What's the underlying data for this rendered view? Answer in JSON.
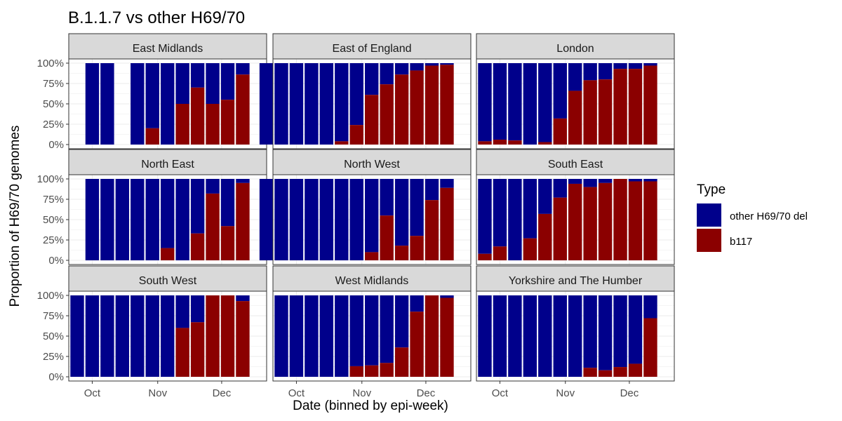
{
  "chart_data": {
    "type": "bar",
    "stacked": true,
    "title": "B.1.1.7 vs other H69/70",
    "xlabel": "Date (binned by epi-week)",
    "ylabel": "Proportion of H69/70 genomes",
    "ylim": [
      0,
      1
    ],
    "y_ticks": [
      "0%",
      "25%",
      "50%",
      "75%",
      "100%"
    ],
    "x_ticks": [
      "Oct",
      "Nov",
      "Dec"
    ],
    "weeks": 12,
    "legend": {
      "title": "Type",
      "position": "right",
      "items": [
        {
          "label": "other H69/70 del",
          "color": "#00008B"
        },
        {
          "label": "b117",
          "color": "#8B0000"
        }
      ]
    },
    "panels": [
      {
        "region": "East Midlands",
        "b117": [
          0,
          0,
          null,
          0,
          0.2,
          0,
          0.5,
          0.7,
          0.5,
          0.55,
          0.86
        ]
      },
      {
        "region": "East of England",
        "b117": [
          0,
          0,
          0,
          0,
          0,
          0.04,
          0.24,
          0.61,
          0.74,
          0.86,
          0.91,
          0.97,
          0.98
        ]
      },
      {
        "region": "London",
        "b117": [
          0.04,
          0.06,
          0.05,
          0,
          0.03,
          0.32,
          0.66,
          0.79,
          0.8,
          0.93,
          0.93,
          0.97
        ]
      },
      {
        "region": "North East",
        "b117": [
          0,
          0,
          0,
          0,
          0,
          0.15,
          0,
          0.33,
          0.82,
          0.42,
          0.95
        ]
      },
      {
        "region": "North West",
        "b117": [
          0,
          0,
          0,
          0,
          0,
          0,
          0,
          0.1,
          0.55,
          0.18,
          0.3,
          0.74,
          0.89
        ]
      },
      {
        "region": "South East",
        "b117": [
          0.08,
          0.17,
          0,
          0.27,
          0.57,
          0.77,
          0.94,
          0.9,
          0.95,
          1.0,
          0.97,
          0.97
        ]
      },
      {
        "region": "South West",
        "b117": [
          0,
          0,
          0,
          0,
          0,
          0,
          0,
          0.6,
          0.67,
          1.0,
          1.0,
          0.93
        ]
      },
      {
        "region": "West Midlands",
        "b117": [
          0,
          0,
          0,
          0,
          0,
          0.13,
          0.14,
          0.17,
          0.36,
          0.8,
          1.0,
          0.97
        ]
      },
      {
        "region": "Yorkshire and The Humber",
        "b117": [
          0,
          0,
          0,
          0,
          0,
          0,
          0,
          0.11,
          0.08,
          0.12,
          0.16,
          0.72
        ]
      }
    ]
  }
}
